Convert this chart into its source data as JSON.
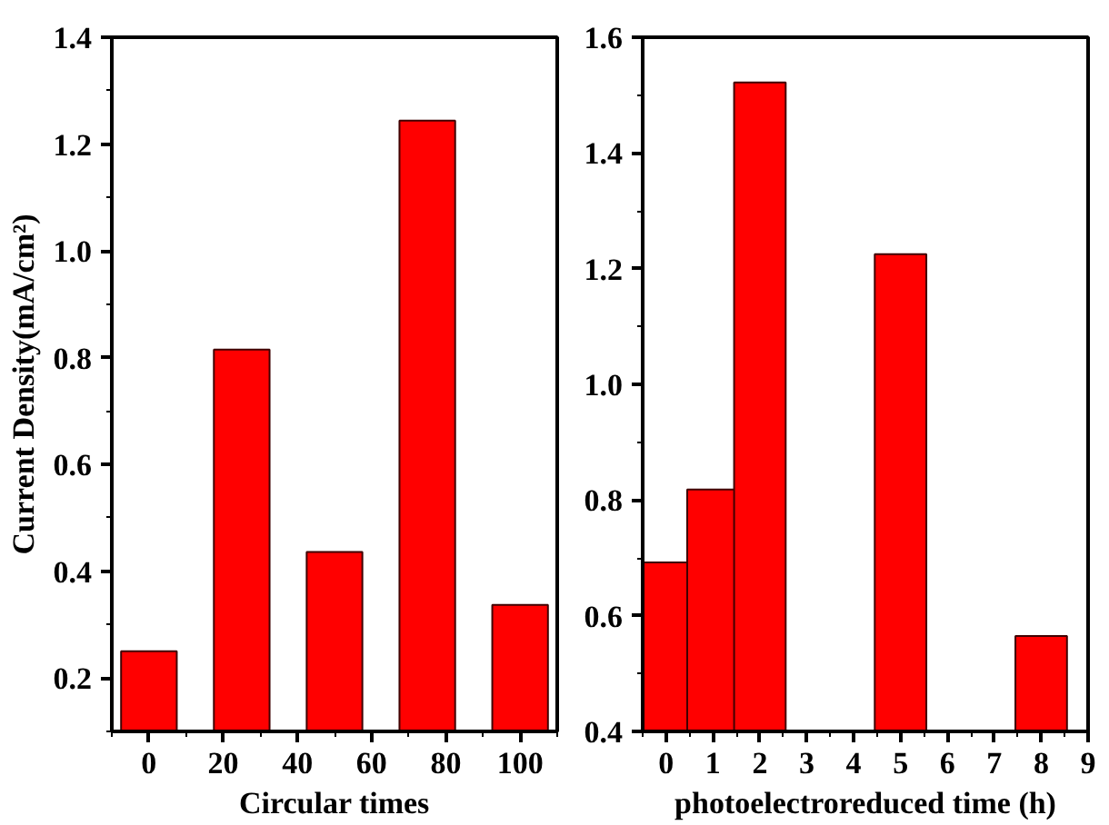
{
  "chart_data": [
    {
      "type": "bar",
      "xlabel": "Circular times",
      "ylabel": "Current Density(mA/cm²)",
      "x": [
        0,
        25,
        50,
        75,
        100
      ],
      "values": [
        0.25,
        0.815,
        0.436,
        1.244,
        0.337
      ],
      "color": "#ff0000",
      "xlim": [
        -10,
        110
      ],
      "xticks": [
        0,
        20,
        40,
        60,
        80,
        100
      ],
      "ylim": [
        0.1,
        1.4
      ],
      "yticks": [
        0.2,
        0.4,
        0.6,
        0.8,
        {
          "value": 1,
          "label": "1.0"
        },
        1.2,
        1.4
      ]
    },
    {
      "type": "bar",
      "xlabel": "photoelectroreduced time (h)",
      "x": [
        0,
        1,
        2,
        5,
        8
      ],
      "values": [
        0.692,
        0.818,
        1.522,
        1.225,
        0.565
      ],
      "color": "#ff0000",
      "xlim": [
        -0.5,
        9
      ],
      "xticks": [
        0,
        1,
        2,
        3,
        4,
        5,
        6,
        7,
        8,
        9
      ],
      "ylim": [
        0.4,
        1.6
      ],
      "yticks": [
        0.4,
        0.6,
        0.8,
        {
          "value": 1,
          "label": "1.0"
        },
        1.2,
        1.4,
        1.6
      ]
    }
  ]
}
